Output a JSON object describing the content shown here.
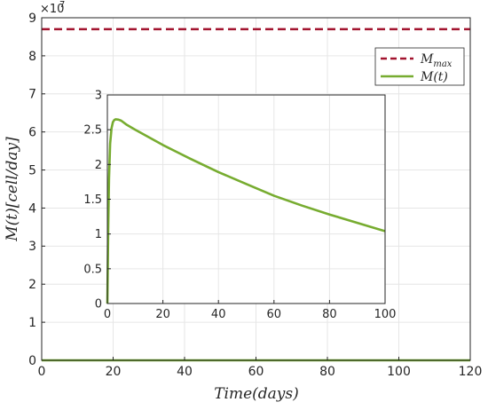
{
  "chart_data": [
    {
      "type": "line",
      "panel": "main",
      "xlabel": "Time(days)",
      "ylabel": "M(t)[cell/day]",
      "xlim": [
        0,
        120
      ],
      "ylim": [
        0,
        9
      ],
      "y_exponent_label": "×10",
      "y_exponent_power": "7",
      "xticks": [
        "0",
        "20",
        "40",
        "60",
        "80",
        "100",
        "120"
      ],
      "yticks": [
        "0",
        "1",
        "2",
        "3",
        "4",
        "5",
        "6",
        "7",
        "8",
        "9"
      ],
      "grid": true,
      "legend_position": "top-right",
      "series": [
        {
          "name": "M_max",
          "legend_main": "M",
          "legend_sub": "max",
          "style": "dashed",
          "color": "#a2142f",
          "x": [
            0,
            120
          ],
          "y": [
            8.7,
            8.7
          ]
        },
        {
          "name": "M(t)",
          "legend_main": "M(t)",
          "style": "solid",
          "color": "#77ac30",
          "x": [
            0,
            120
          ],
          "y": [
            0,
            0
          ]
        }
      ]
    },
    {
      "type": "line",
      "panel": "inset",
      "xlim": [
        0,
        100
      ],
      "ylim": [
        0,
        3
      ],
      "xticks": [
        "0",
        "20",
        "40",
        "60",
        "80",
        "100"
      ],
      "yticks": [
        "0",
        "0.5",
        "1",
        "1.5",
        "2",
        "2.5",
        "3"
      ],
      "grid": true,
      "series": [
        {
          "name": "M(t)",
          "style": "solid",
          "color": "#77ac30",
          "x": [
            0,
            0.3,
            0.6,
            1,
            1.5,
            2,
            2.5,
            3,
            4,
            5,
            7,
            10,
            15,
            20,
            25,
            30,
            40,
            50,
            60,
            70,
            80,
            90,
            100
          ],
          "y": [
            0,
            1.05,
            1.8,
            2.3,
            2.52,
            2.61,
            2.64,
            2.65,
            2.645,
            2.63,
            2.57,
            2.5,
            2.39,
            2.28,
            2.18,
            2.08,
            1.89,
            1.72,
            1.55,
            1.41,
            1.28,
            1.16,
            1.04
          ]
        }
      ]
    }
  ]
}
